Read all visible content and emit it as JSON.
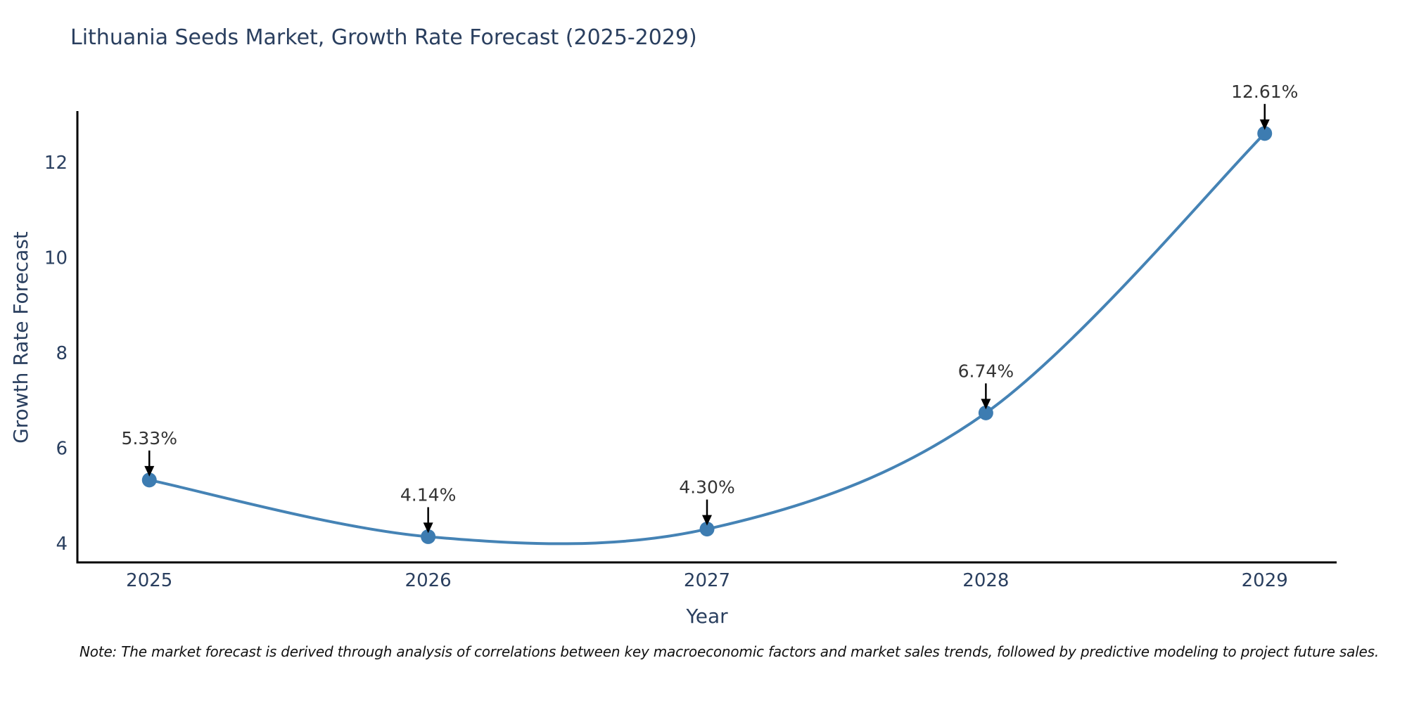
{
  "chart_data": {
    "type": "line",
    "title": "Lithuania Seeds Market, Growth Rate Forecast (2025-2029)",
    "xlabel": "Year",
    "ylabel": "Growth Rate Forecast",
    "x": [
      2025,
      2026,
      2027,
      2028,
      2029
    ],
    "series": [
      {
        "name": "Growth Rate Forecast",
        "values": [
          5.33,
          4.14,
          4.3,
          6.74,
          12.61
        ]
      }
    ],
    "point_labels": [
      "5.33%",
      "4.14%",
      "4.30%",
      "6.74%",
      "12.61%"
    ],
    "x_ticks": [
      "2025",
      "2026",
      "2027",
      "2028",
      "2029"
    ],
    "y_ticks": [
      4,
      6,
      8,
      10,
      12
    ],
    "xlim": [
      2024.742,
      2029.258
    ],
    "ylim": [
      3.6,
      13.08
    ],
    "grid": false,
    "legend": "none",
    "line_shape": "spline",
    "annotation_style": "down-arrow",
    "colors": {
      "line": "#4583b5",
      "marker": "#3d7cb1",
      "axis": "#000000",
      "tick_text": "#2a3f5f",
      "annotation_text": "#333333",
      "arrow": "#000000",
      "background": "#ffffff"
    },
    "note": "Note: The market forecast is derived through analysis of correlations between key macroeconomic factors and market sales trends, followed by predictive modeling to project future sales."
  }
}
